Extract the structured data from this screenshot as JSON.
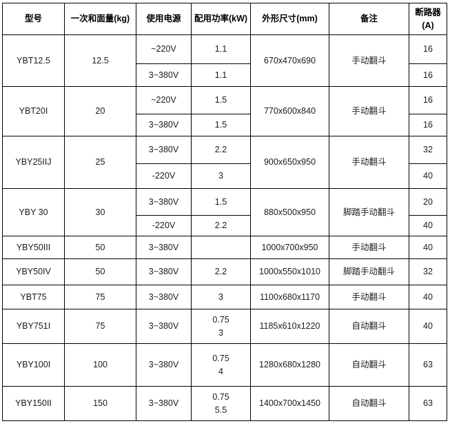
{
  "table": {
    "headers": [
      [
        "型号"
      ],
      [
        "一次和面量(kg)"
      ],
      [
        "使用电源"
      ],
      [
        "配用功率(kW)"
      ],
      [
        "外形尺寸(mm)"
      ],
      [
        "备注"
      ],
      [
        "断路器",
        "(A)"
      ]
    ],
    "rows": [
      {
        "model": "YBT12.5",
        "amount": "12.5",
        "dims": "670x470x690",
        "remark": "手动翻斗",
        "variants": [
          {
            "power": "~220V",
            "kw": [
              "1.1"
            ],
            "breaker": "16"
          },
          {
            "power": "3~380V",
            "kw": [
              "1.1"
            ],
            "breaker": "16"
          }
        ]
      },
      {
        "model": "YBT20I",
        "amount": "20",
        "dims": "770x600x840",
        "remark": "手动翻斗",
        "variants": [
          {
            "power": "~220V",
            "kw": [
              "1.5"
            ],
            "breaker": "16"
          },
          {
            "power": "3~380V",
            "kw": [
              "1.5"
            ],
            "breaker": "16"
          }
        ]
      },
      {
        "model": "YBY25IIJ",
        "amount": "25",
        "dims": "900x650x950",
        "remark": "手动翻斗",
        "variants": [
          {
            "power": "3~380V",
            "kw": [
              "2.2"
            ],
            "breaker": "32"
          },
          {
            "power": "-220V",
            "kw": [
              "3"
            ],
            "breaker": "40"
          }
        ]
      },
      {
        "model": "YBY 30",
        "amount": "30",
        "dims": "880x500x950",
        "remark": "脚踏手动翻斗",
        "variants": [
          {
            "power": "3~380V",
            "kw": [
              "1.5"
            ],
            "breaker": "20"
          },
          {
            "power": "-220V",
            "kw": [
              "2.2"
            ],
            "breaker": "40"
          }
        ]
      },
      {
        "model": "YBY50III",
        "amount": "50",
        "dims": "1000x700x950",
        "remark": "手动翻斗",
        "variants": [
          {
            "power": "3~380V",
            "kw": [
              ""
            ],
            "breaker": "40"
          }
        ]
      },
      {
        "model": "YBY50IV",
        "amount": "50",
        "dims": "1000x550x1010",
        "remark": "脚踏手动翻斗",
        "variants": [
          {
            "power": "3~380V",
            "kw": [
              "2.2"
            ],
            "breaker": "32"
          }
        ]
      },
      {
        "model": "YBT75",
        "amount": "75",
        "dims": "1100x680x1170",
        "remark": "手动翻斗",
        "variants": [
          {
            "power": "3~380V",
            "kw": [
              "3"
            ],
            "breaker": "40"
          }
        ]
      },
      {
        "model": "YBY751I",
        "amount": "75",
        "dims": "1185x610x1220",
        "remark": "自动翻斗",
        "variants": [
          {
            "power": "3~380V",
            "kw": [
              "0.75",
              "3"
            ],
            "breaker": "40"
          }
        ]
      },
      {
        "model": "YBY100I",
        "amount": "100",
        "dims": "1280x680x1280",
        "remark": "自动翻斗",
        "variants": [
          {
            "power": "3~380V",
            "kw": [
              "0.75",
              "4"
            ],
            "breaker": "63"
          }
        ]
      },
      {
        "model": "YBY150II",
        "amount": "150",
        "dims": "1400x700x1450",
        "remark": "自动翻斗",
        "variants": [
          {
            "power": "3~380V",
            "kw": [
              "0.75",
              "5.5"
            ],
            "breaker": "63"
          }
        ]
      }
    ],
    "colors": {
      "border": "#000000",
      "text": "#1a1a1a",
      "background": "#ffffff"
    }
  }
}
